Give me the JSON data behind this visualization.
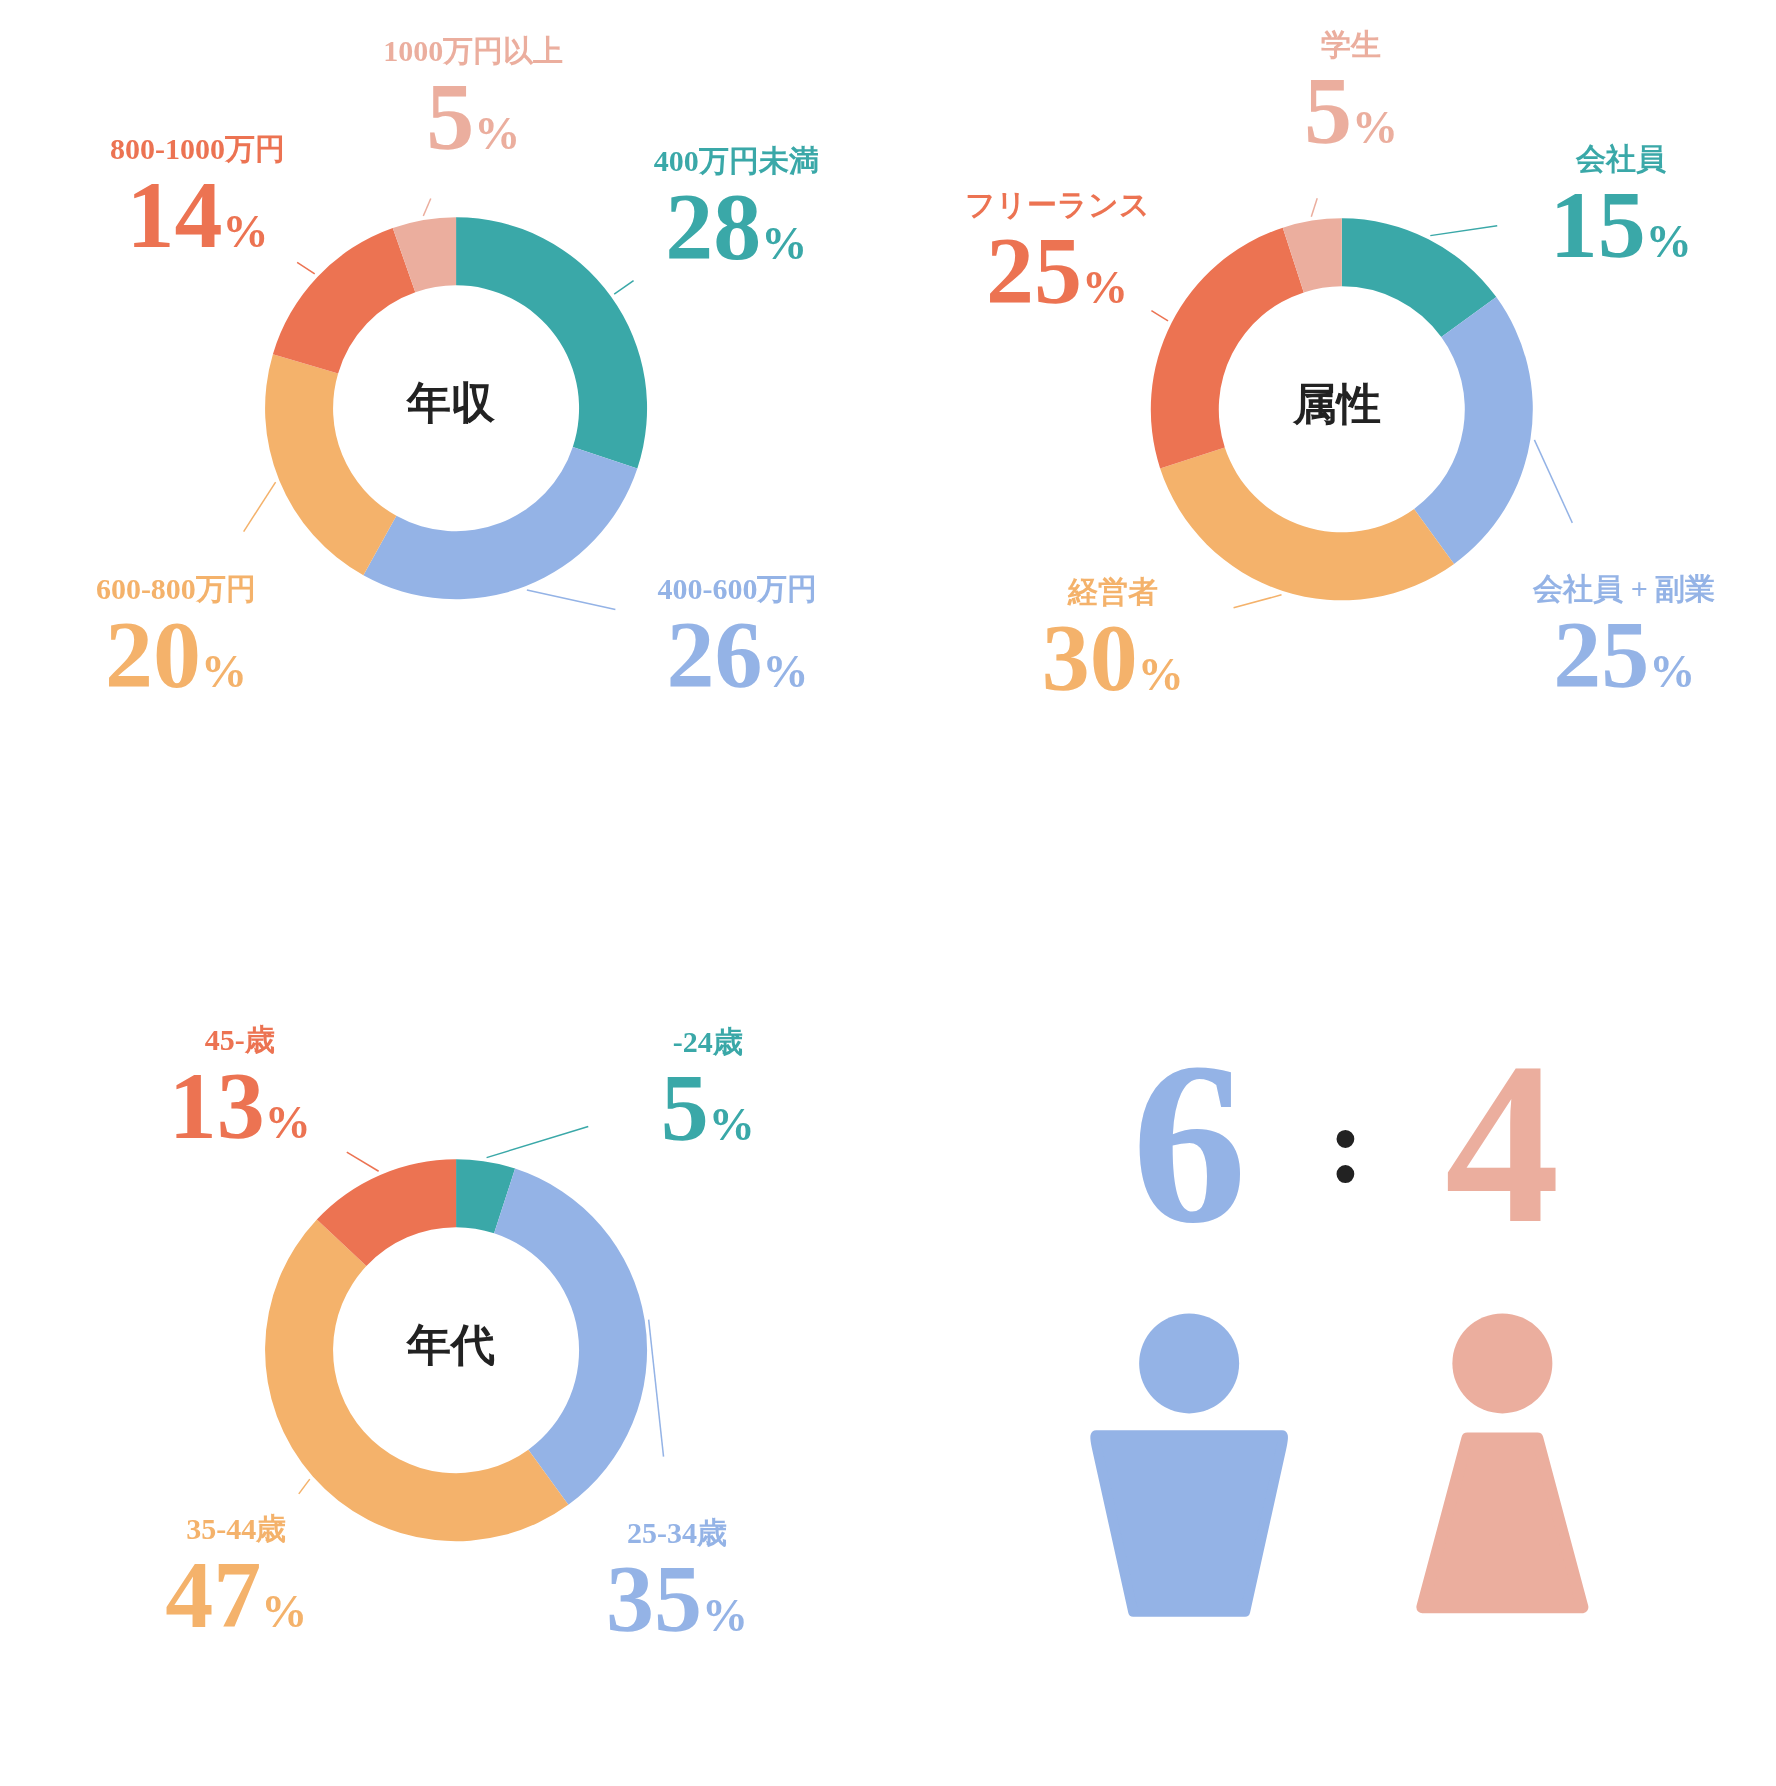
{
  "chart_data": [
    {
      "type": "donut",
      "title": "年収",
      "categories": [
        "400万円未満",
        "400-600万円",
        "600-800万円",
        "800-1000万円",
        "1000万円以上"
      ],
      "values": [
        28,
        26,
        20,
        14,
        5
      ],
      "colors": [
        "#3aa8a8",
        "#94b3e6",
        "#f4b26b",
        "#ec7352",
        "#ebae9e"
      ],
      "value_labels": [
        "28%",
        "26%",
        "20%",
        "14%",
        "5%"
      ]
    },
    {
      "type": "donut",
      "title": "属性",
      "categories": [
        "会社員",
        "会社員 + 副業",
        "経営者",
        "フリーランス",
        "学生"
      ],
      "values": [
        15,
        25,
        30,
        25,
        5
      ],
      "colors": [
        "#3aa8a8",
        "#94b3e6",
        "#f4b26b",
        "#ec7352",
        "#ebae9e"
      ],
      "value_labels": [
        "15%",
        "25%",
        "30%",
        "25%",
        "5%"
      ]
    },
    {
      "type": "donut",
      "title": "年代",
      "categories": [
        "-24歳",
        "25-34歳",
        "35-44歳",
        "45-歳"
      ],
      "values": [
        5,
        35,
        47,
        13
      ],
      "colors": [
        "#3aa8a8",
        "#94b3e6",
        "#f4b26b",
        "#ec7352"
      ],
      "value_labels": [
        "5%",
        "35%",
        "47%",
        "13%"
      ]
    },
    {
      "type": "other",
      "colors": [
        "#94b3e6",
        "#222222",
        "#ebae9e"
      ],
      "annotations": [
        "6",
        ":",
        "4"
      ]
    }
  ]
}
